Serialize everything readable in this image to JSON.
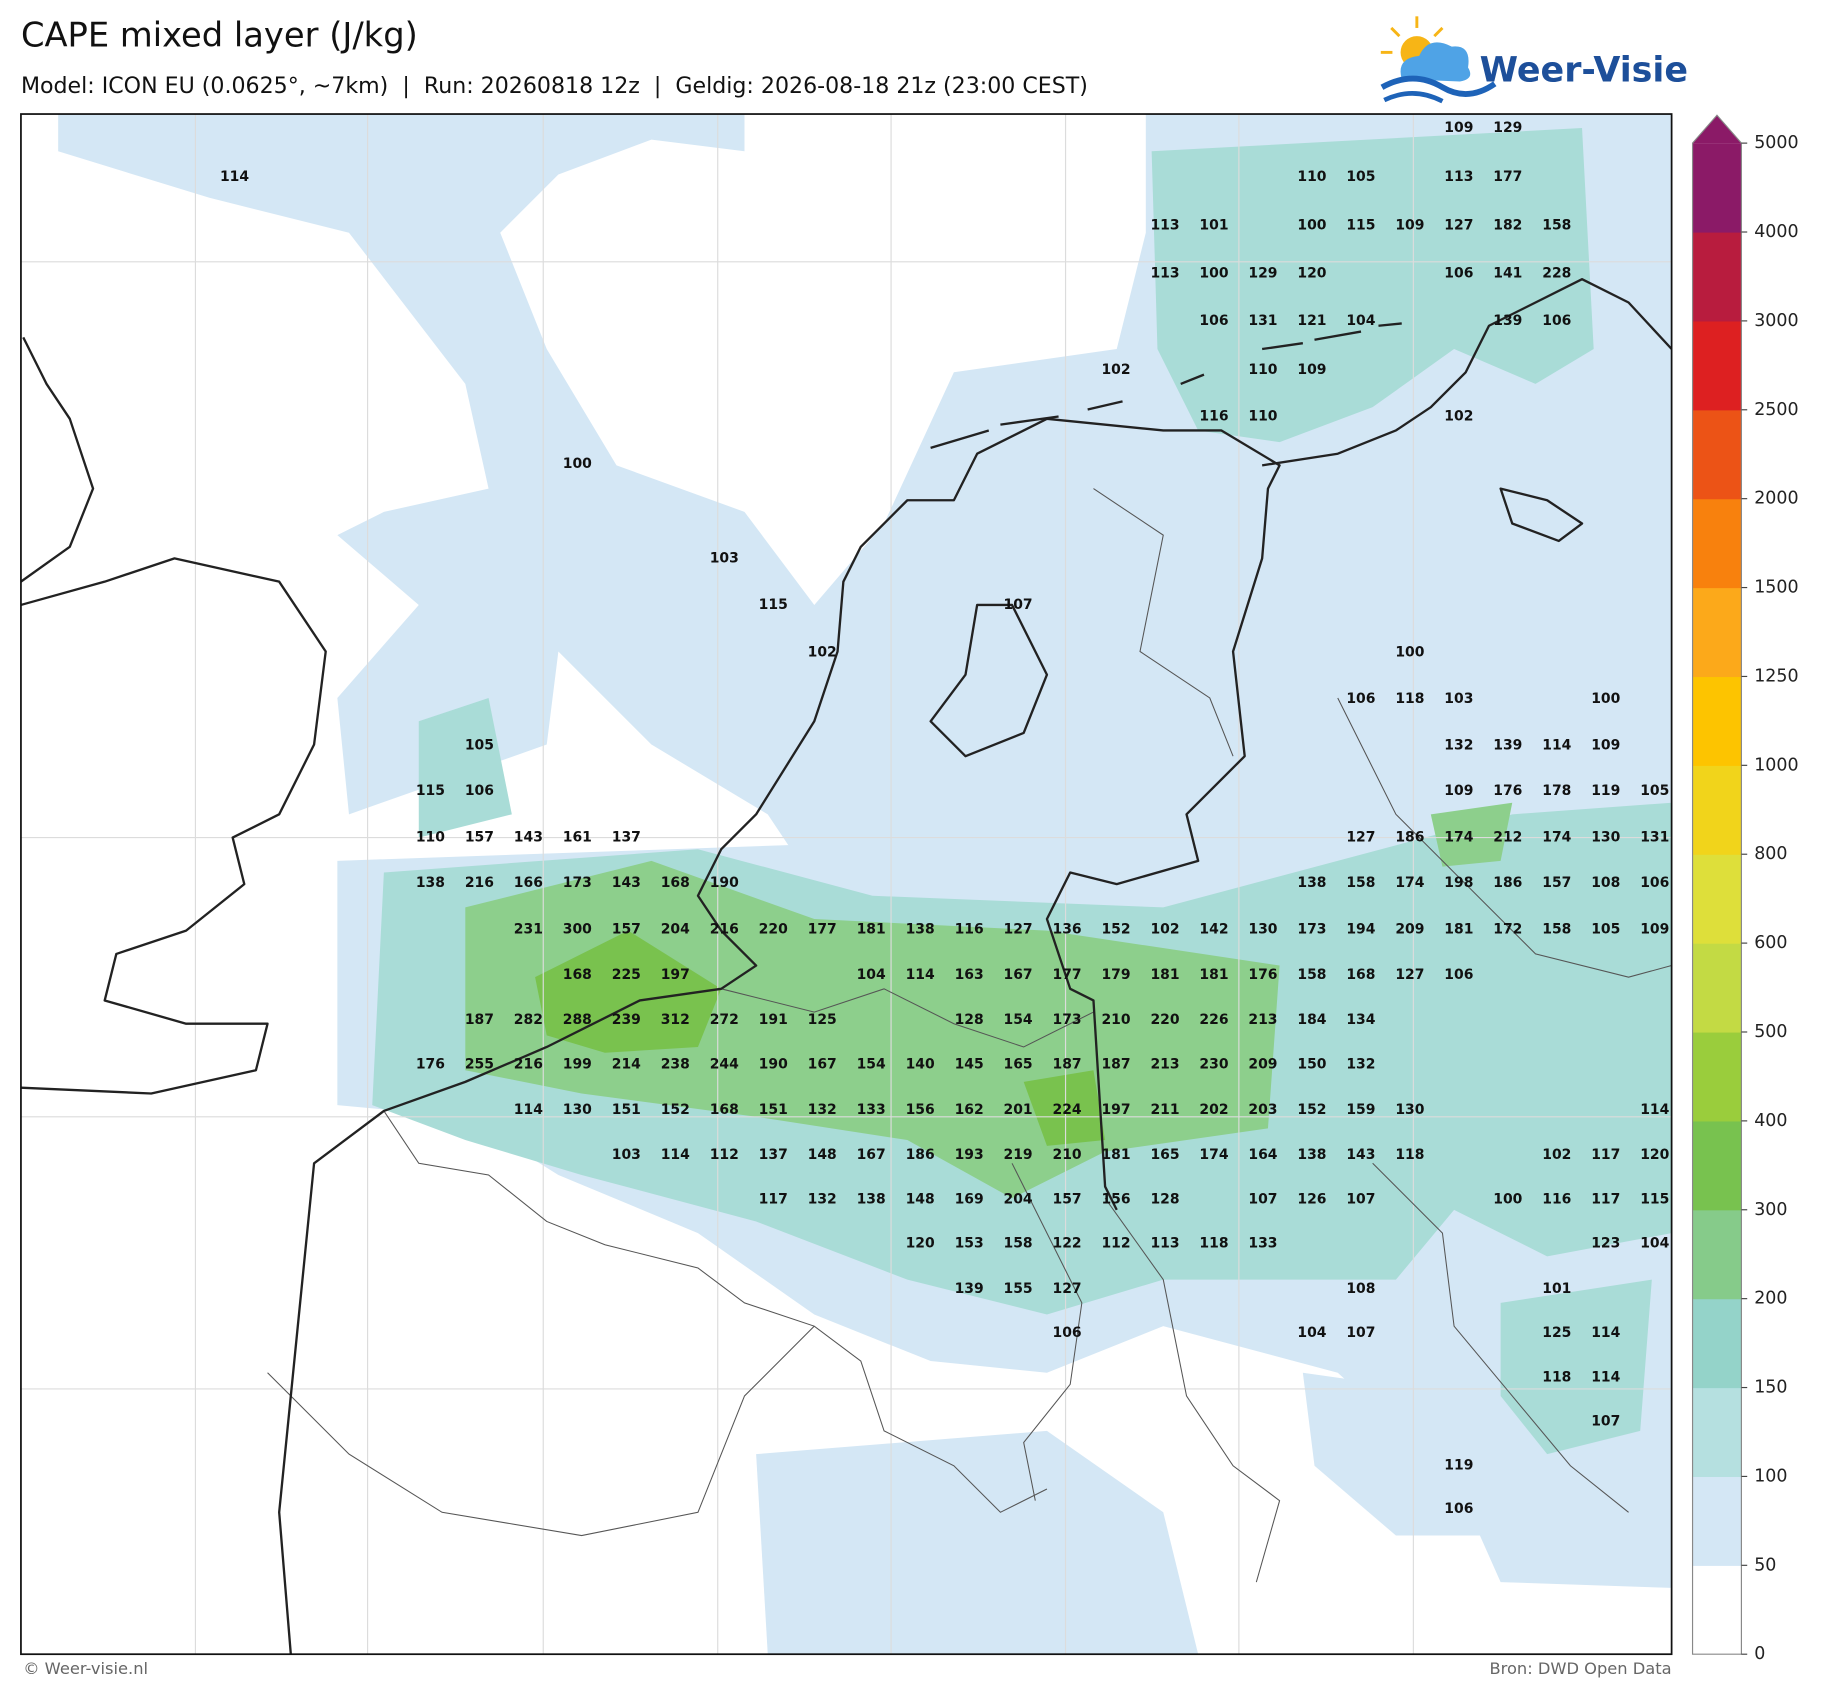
{
  "header": {
    "title": "CAPE mixed layer (J/kg)",
    "subtitle": "Model: ICON EU (0.0625°, ~7km)  |  Run: 20260818 12z  |  Geldig: 2026-08-18 21z (23:00 CEST)",
    "logo": "Weer-Visie"
  },
  "colorbar": {
    "ticks": [
      0,
      50,
      100,
      150,
      200,
      300,
      400,
      500,
      600,
      800,
      1000,
      1250,
      1500,
      2000,
      2500,
      3000,
      4000,
      5000
    ],
    "colors": [
      "#ffffff",
      "#d4e7f5",
      "#b5e0e0",
      "#94d3c9",
      "#86cb8a",
      "#78c24f",
      "#9acd3c",
      "#c3da44",
      "#dedf3a",
      "#f1d41b",
      "#fdc400",
      "#fca91a",
      "#f8810d",
      "#ec5316",
      "#dd2021",
      "#b81c3e",
      "#8b1a67"
    ]
  },
  "labels": {
    "rows": [
      [
        109,
        129
      ],
      [
        114,
        null,
        null,
        null,
        null,
        null,
        null,
        null,
        null,
        null,
        null,
        null,
        null,
        null,
        null,
        null,
        null,
        null,
        null,
        null,
        null,
        null,
        110,
        105,
        null,
        113,
        177
      ],
      [
        113,
        101,
        null,
        100,
        115,
        109,
        127,
        182,
        158
      ],
      [
        113,
        100,
        129,
        120,
        null,
        null,
        106,
        141,
        228
      ],
      [
        106,
        131,
        121,
        104,
        null,
        null,
        139,
        106
      ],
      [
        102,
        null,
        null,
        110,
        109
      ],
      [
        116,
        110,
        null,
        null,
        null,
        102
      ],
      [
        100
      ],
      [
        103
      ],
      [
        115,
        null,
        null,
        null,
        null,
        107
      ],
      [
        102,
        null,
        null,
        null,
        null,
        null,
        null,
        null,
        null,
        null,
        null,
        null,
        100
      ],
      [
        106,
        118,
        103,
        null,
        null,
        100
      ],
      [
        105,
        null,
        null,
        null,
        null,
        null,
        null,
        null,
        null,
        null,
        null,
        null,
        null,
        null,
        null,
        null,
        null,
        null,
        null,
        null,
        132,
        139,
        114,
        109
      ],
      [
        115,
        106,
        null,
        null,
        null,
        null,
        null,
        null,
        null,
        null,
        null,
        null,
        null,
        null,
        null,
        null,
        null,
        null,
        null,
        null,
        null,
        109,
        176,
        178,
        119,
        105
      ],
      [
        110,
        157,
        143,
        161,
        137,
        null,
        null,
        null,
        null,
        null,
        null,
        null,
        null,
        null,
        null,
        null,
        null,
        null,
        null,
        127,
        186,
        174,
        212,
        174,
        130,
        131
      ],
      [
        138,
        216,
        166,
        173,
        143,
        168,
        190,
        null,
        null,
        null,
        null,
        null,
        null,
        null,
        null,
        null,
        null,
        null,
        138,
        158,
        174,
        198,
        186,
        157,
        108,
        106
      ],
      [
        231,
        300,
        157,
        204,
        216,
        220,
        177,
        181,
        138,
        116,
        127,
        136,
        152,
        102,
        142,
        130,
        173,
        194,
        209,
        181,
        172,
        158,
        105,
        109
      ],
      [
        168,
        225,
        197,
        null,
        null,
        null,
        104,
        114,
        163,
        167,
        177,
        179,
        181,
        181,
        176,
        158,
        168,
        127,
        106
      ],
      [
        187,
        282,
        288,
        239,
        312,
        272,
        191,
        125,
        null,
        null,
        128,
        154,
        173,
        210,
        220,
        226,
        213,
        184,
        134
      ],
      [
        176,
        255,
        216,
        199,
        214,
        238,
        244,
        190,
        167,
        154,
        140,
        145,
        165,
        187,
        187,
        213,
        230,
        209,
        150,
        132
      ],
      [
        114,
        130,
        151,
        152,
        168,
        151,
        132,
        133,
        156,
        162,
        201,
        224,
        197,
        211,
        202,
        203,
        152,
        159,
        130,
        null,
        null,
        null,
        null,
        114
      ],
      [
        103,
        114,
        112,
        137,
        148,
        167,
        186,
        193,
        219,
        210,
        181,
        165,
        174,
        164,
        138,
        143,
        118,
        null,
        null,
        102,
        117,
        120
      ],
      [
        117,
        132,
        138,
        148,
        169,
        204,
        157,
        156,
        128,
        null,
        107,
        126,
        107,
        null,
        null,
        100,
        116,
        117,
        115
      ],
      [
        120,
        153,
        158,
        122,
        112,
        113,
        118,
        133,
        null,
        null,
        null,
        null,
        null,
        null,
        123,
        104
      ],
      [
        139,
        155,
        127,
        null,
        null,
        null,
        null,
        null,
        108,
        null,
        null,
        null,
        101
      ],
      [
        106,
        null,
        null,
        null,
        null,
        104,
        107,
        null,
        null,
        null,
        125,
        114
      ],
      [
        118,
        114
      ],
      [
        107
      ],
      [
        119
      ],
      [
        106
      ]
    ]
  },
  "footer": {
    "credit": "© Weer-visie.nl",
    "source": "Bron: DWD Open Data"
  }
}
